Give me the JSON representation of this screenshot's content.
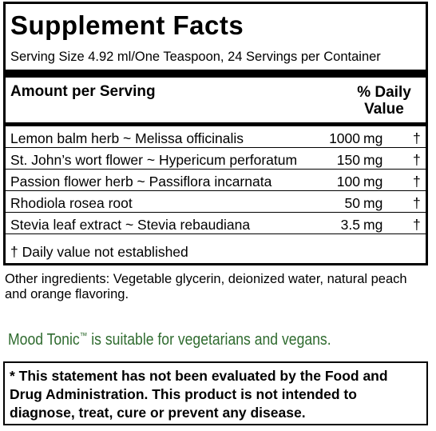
{
  "facts": {
    "title": "Supplement Facts",
    "serving": "Serving Size 4.92 ml/One Teaspoon, 24 Servings per Container",
    "amount_label": "Amount per Serving",
    "dv_line1": "% Daily",
    "dv_line2": "Value",
    "rows": [
      {
        "name": "Lemon balm herb ~ Melissa officinalis",
        "amount": "1000",
        "unit": "mg",
        "dv": "†"
      },
      {
        "name": "St. John’s wort flower ~ Hypericum perforatum",
        "amount": "150",
        "unit": "mg",
        "dv": "†"
      },
      {
        "name": "Passion flower herb ~ Passiflora incarnata",
        "amount": "100",
        "unit": "mg",
        "dv": "†"
      },
      {
        "name": "Rhodiola rosea root",
        "amount": "50",
        "unit": "mg",
        "dv": "†"
      },
      {
        "name": "Stevia leaf extract ~ Stevia rebaudiana",
        "amount": "3.5",
        "unit": "mg",
        "dv": "†"
      }
    ],
    "footnote": "† Daily value not established"
  },
  "other_ingredients": "Other ingredients: Vegetable glycerin, deionized water, natural peach and orange flavoring.",
  "mood": {
    "product": "Mood Tonic",
    "tm": "™",
    "text": " is suitable for vegetarians and vegans.",
    "color": "#2f6b2f"
  },
  "disclaimer": "* This statement has not been evaluated by the Food and Drug Administration. This product is not intended to diagnose, treat, cure or prevent any disease."
}
